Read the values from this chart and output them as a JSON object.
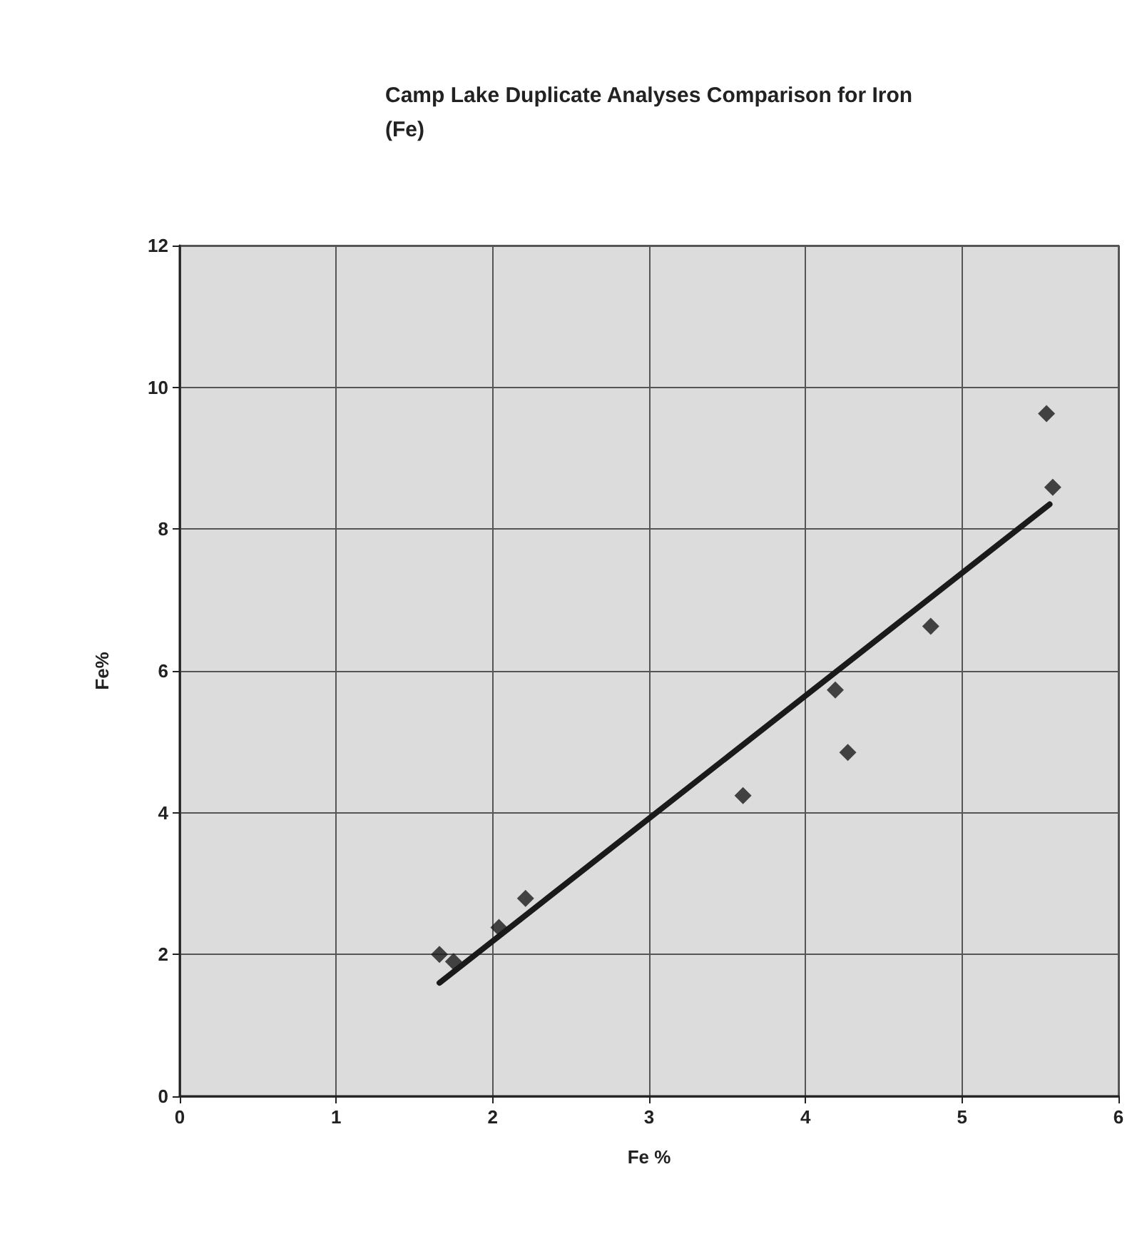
{
  "chart_data": {
    "type": "scatter",
    "title": "Camp Lake Duplicate Analyses Comparison for Iron (Fe)",
    "xlabel": "Fe %",
    "ylabel": "Fe%",
    "series": [
      {
        "color": "#1a1a1a",
        "marker": "diamond",
        "x": [
          1.66,
          1.75,
          2.04,
          2.21,
          3.6,
          4.19,
          4.27,
          4.8,
          5.54,
          5.58
        ],
        "values": [
          2.0,
          1.9,
          2.38,
          2.79,
          4.24,
          5.73,
          4.85,
          6.63,
          9.63,
          8.59
        ]
      },
      {
        "type": "line",
        "color": "#1a1a1a",
        "marker": "none",
        "line_style": "solid",
        "x": [
          1.66,
          5.56
        ],
        "values": [
          1.6,
          8.35
        ]
      }
    ],
    "xlim": [
      0,
      6
    ],
    "xticks": [
      0,
      1,
      2,
      3,
      4,
      5,
      6
    ],
    "ylim": [
      0,
      12
    ],
    "yticks": [
      0,
      2,
      4,
      6,
      8,
      10,
      12
    ],
    "grid": true
  }
}
